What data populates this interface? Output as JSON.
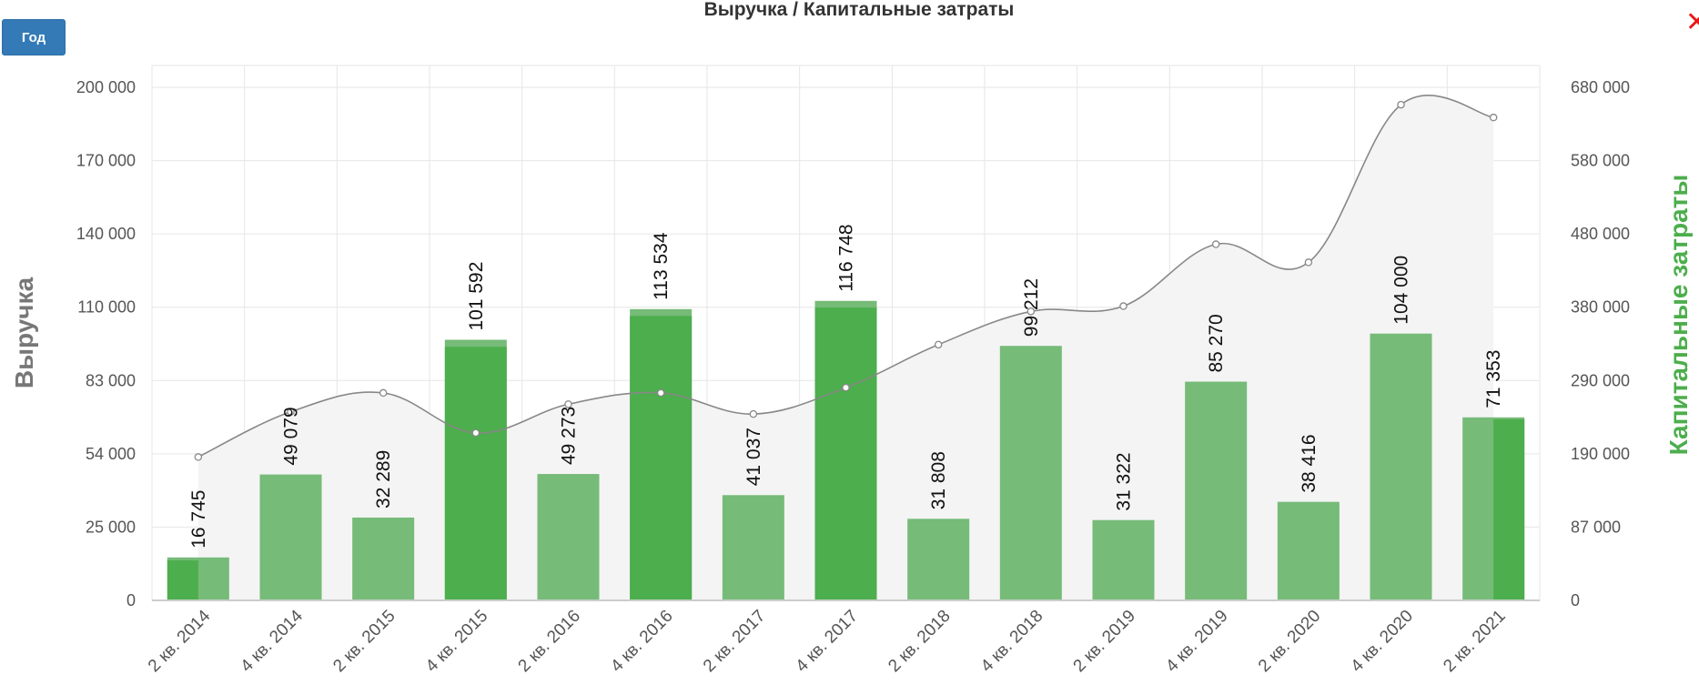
{
  "controls": {
    "period_button_label": "Год",
    "close_icon": "close-icon"
  },
  "colors": {
    "bar_light": "#76bb78",
    "bar_dark": "#4cae4c",
    "line": "#888888",
    "area": "#f4f4f4",
    "grid": "#e6e6e6",
    "right_axis_title": "#4cae4c",
    "left_axis_title": "#777777",
    "close": "#e8161a"
  },
  "chart_data": {
    "type": "bar",
    "title": "Выручка / Капитальные затраты",
    "grid": true,
    "categories": [
      "2 кв. 2014",
      "4 кв. 2014",
      "2 кв. 2015",
      "4 кв. 2015",
      "2 кв. 2016",
      "4 кв. 2016",
      "2 кв. 2017",
      "4 кв. 2017",
      "2 кв. 2018",
      "4 кв. 2018",
      "2 кв. 2019",
      "4 кв. 2019",
      "2 кв. 2020",
      "4 кв. 2020",
      "2 кв. 2021"
    ],
    "left_axis": {
      "label": "Выручка",
      "ticks": [
        "0",
        "25 000",
        "54 000",
        "83 000",
        "110 000",
        "140 000",
        "170 000",
        "200 000"
      ],
      "range": [
        0,
        200000
      ]
    },
    "right_axis": {
      "label": "Капитальные затраты",
      "ticks": [
        "0",
        "87 000",
        "190 000",
        "290 000",
        "380 000",
        "480 000",
        "580 000",
        "680 000"
      ],
      "range": [
        0,
        680000
      ]
    },
    "series": [
      {
        "name": "Выручка",
        "type": "bar",
        "axis": "left",
        "values": [
          16745,
          49079,
          32289,
          101592,
          49273,
          113534,
          41037,
          116748,
          31808,
          99212,
          31322,
          85270,
          38416,
          104000,
          71353
        ],
        "labels": [
          "16 745",
          "49 079",
          "32 289",
          "101 592",
          "49 273",
          "113 534",
          "41 037",
          "116 748",
          "31 808",
          "99 212",
          "31 322",
          "85 270",
          "38 416",
          "104 000",
          "71 353"
        ]
      },
      {
        "name": "Капитальные затраты",
        "type": "bar",
        "axis": "right",
        "values": [
          53000,
          0,
          0,
          336000,
          0,
          377000,
          0,
          388000,
          0,
          0,
          0,
          0,
          0,
          0,
          240000
        ]
      },
      {
        "name": "Капитальные затраты",
        "type": "area-spline",
        "axis": "right",
        "values": [
          190000,
          250000,
          275000,
          222000,
          260000,
          275000,
          247000,
          282000,
          339000,
          383000,
          390000,
          472000,
          448000,
          657000,
          640000
        ]
      }
    ]
  }
}
